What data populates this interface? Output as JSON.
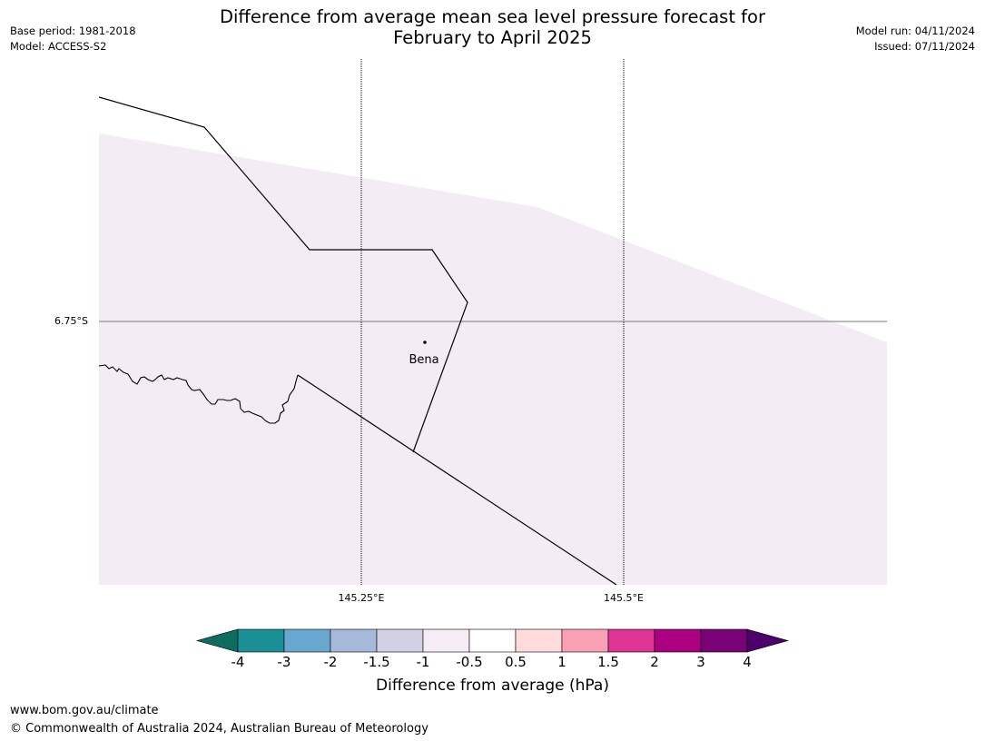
{
  "title": {
    "line1": "Difference from average mean sea level pressure forecast for",
    "line2": "February to April 2025"
  },
  "meta_left": {
    "base_period": "Base period: 1981-2018",
    "model": "Model: ACCESS-S2"
  },
  "meta_right": {
    "model_run": "Model run: 04/11/2024",
    "issued": "Issued: 07/11/2024"
  },
  "map": {
    "latitude_labels": [
      "6.75°S"
    ],
    "longitude_labels": [
      "145.25°E",
      "145.5°E"
    ],
    "places": [
      {
        "name": "Bena"
      }
    ],
    "fill_color": "#f4ecf5",
    "line_color": "#000000",
    "gridline_color": "#000000"
  },
  "colorbar": {
    "title": "Difference from average (hPa)",
    "ticks": [
      "-4",
      "-3",
      "-2",
      "-1.5",
      "-1",
      "-0.5",
      "0.5",
      "1",
      "1.5",
      "2",
      "3",
      "4"
    ],
    "colors": {
      "below_min": "#0e6d5f",
      "bins": [
        "#1a8f96",
        "#67a7d0",
        "#a7b9da",
        "#d1d0e5",
        "#f6ecf6",
        "#ffffff",
        "#fedcdb",
        "#f9a0b5",
        "#dd3496",
        "#ab0180",
        "#7b0176"
      ],
      "above_max": "#4d006a"
    }
  },
  "footer": {
    "url": "www.bom.gov.au/climate",
    "copyright": "© Commonwealth of Australia 2024, Australian Bureau of Meteorology"
  }
}
